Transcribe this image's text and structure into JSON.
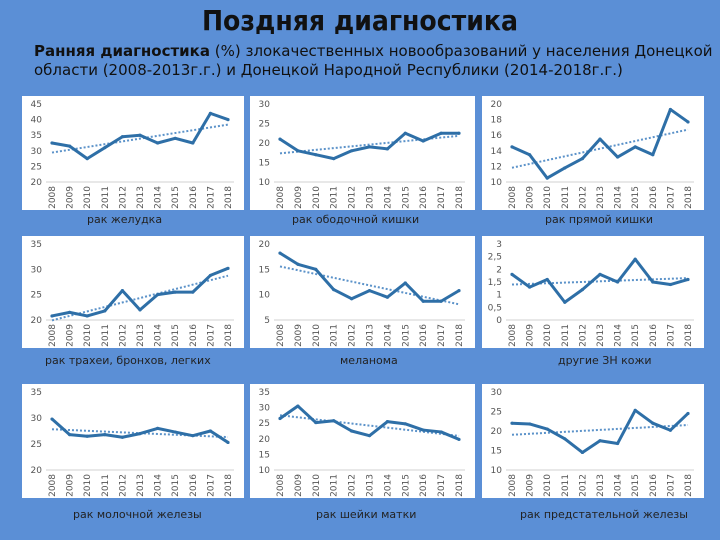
{
  "header": {
    "title": "Поздняя диагностика",
    "subtitle_bold": "Ранняя диагностика",
    "subtitle_rest": " (%) злокачественных новообразований у населения Донецкой области (2008-2013г.г.) и Донецкой Народной Республики (2014-2018г.г.)"
  },
  "colors": {
    "line": "#2e6fa7",
    "trend": "#5b92c9",
    "background": "#5b8fd6"
  },
  "chart_data": [
    {
      "type": "line",
      "title": "рак желудка",
      "x": [
        "2008",
        "2009",
        "2010",
        "2011",
        "2012",
        "2013",
        "2014",
        "2015",
        "2016",
        "2017",
        "2018"
      ],
      "values": [
        32.5,
        31.5,
        27.5,
        31,
        34.5,
        35,
        32.5,
        34,
        32.5,
        42,
        40
      ],
      "ylim": [
        20,
        45
      ],
      "yticks": [
        "20",
        "25",
        "30",
        "35",
        "40",
        "45"
      ]
    },
    {
      "type": "line",
      "title": "рак ободочной кишки",
      "x": [
        "2008",
        "2009",
        "2010",
        "2011",
        "2012",
        "2013",
        "2014",
        "2015",
        "2016",
        "2017",
        "2018"
      ],
      "values": [
        21,
        18,
        17,
        16,
        18,
        19,
        18.5,
        22.5,
        20.5,
        22.5,
        22.5
      ],
      "ylim": [
        10,
        30
      ],
      "yticks": [
        "10",
        "15",
        "20",
        "25",
        "30"
      ]
    },
    {
      "type": "line",
      "title": "рак прямой кишки",
      "x": [
        "2008",
        "2009",
        "2010",
        "2011",
        "2012",
        "2013",
        "2014",
        "2015",
        "2016",
        "2017",
        "2018"
      ],
      "values": [
        14.5,
        13.5,
        10.5,
        11.8,
        13,
        15.5,
        13.2,
        14.5,
        13.5,
        19.3,
        17.7
      ],
      "ylim": [
        10,
        20
      ],
      "yticks": [
        "10",
        "12",
        "14",
        "16",
        "18",
        "20"
      ]
    },
    {
      "type": "line",
      "title": "рак трахеи, бронхов, легких",
      "x": [
        "2008",
        "2009",
        "2010",
        "2011",
        "2012",
        "2013",
        "2014",
        "2015",
        "2016",
        "2017",
        "2018"
      ],
      "values": [
        20.8,
        21.5,
        20.8,
        21.8,
        25.8,
        22,
        25,
        25.5,
        25.5,
        28.8,
        30.2
      ],
      "ylim": [
        20,
        35
      ],
      "yticks": [
        "20",
        "25",
        "30",
        "35"
      ]
    },
    {
      "type": "line",
      "title": "меланома",
      "x": [
        "2008",
        "2009",
        "2010",
        "2011",
        "2012",
        "2013",
        "2014",
        "2015",
        "2016",
        "2017",
        "2018"
      ],
      "values": [
        18.2,
        16,
        15,
        11,
        9.2,
        10.8,
        9.5,
        12.3,
        8.7,
        8.7,
        10.8
      ],
      "ylim": [
        5,
        20
      ],
      "yticks": [
        "5",
        "10",
        "15",
        "20"
      ]
    },
    {
      "type": "line",
      "title": "другие ЗН кожи",
      "x": [
        "2008",
        "2009",
        "2010",
        "2011",
        "2012",
        "2013",
        "2014",
        "2015",
        "2016",
        "2017",
        "2018"
      ],
      "values": [
        1.8,
        1.3,
        1.6,
        0.7,
        1.2,
        1.8,
        1.5,
        2.4,
        1.5,
        1.4,
        1.6
      ],
      "ylim": [
        0,
        3
      ],
      "yticks": [
        "0",
        "0,5",
        "1",
        "1,5",
        "2",
        "2,5",
        "3"
      ]
    },
    {
      "type": "line",
      "title": "рак молочной железы",
      "x": [
        "2008",
        "2009",
        "2010",
        "2011",
        "2012",
        "2013",
        "2014",
        "2015",
        "2016",
        "2017",
        "2018"
      ],
      "values": [
        29.8,
        26.8,
        26.5,
        26.8,
        26.3,
        27,
        28,
        27.3,
        26.6,
        27.5,
        25.3
      ],
      "ylim": [
        20,
        35
      ],
      "yticks": [
        "20",
        "25",
        "30",
        "35"
      ]
    },
    {
      "type": "line",
      "title": "рак шейки матки",
      "x": [
        "2008",
        "2009",
        "2010",
        "2011",
        "2012",
        "2013",
        "2014",
        "2015",
        "2016",
        "2017",
        "2018"
      ],
      "values": [
        26.5,
        30.5,
        25.2,
        25.8,
        22.5,
        21,
        25.5,
        24.8,
        22.8,
        22.2,
        19.8
      ],
      "ylim": [
        10,
        35
      ],
      "yticks": [
        "10",
        "15",
        "20",
        "25",
        "30",
        "35"
      ]
    },
    {
      "type": "line",
      "title": "рак предстательной железы",
      "x": [
        "2008",
        "2009",
        "2010",
        "2011",
        "2012",
        "2013",
        "2014",
        "2015",
        "2016",
        "2017",
        "2018"
      ],
      "values": [
        22,
        21.8,
        20.5,
        18,
        14.5,
        17.5,
        16.8,
        25.3,
        22,
        20.2,
        24.5
      ],
      "ylim": [
        10,
        30
      ],
      "yticks": [
        "10",
        "15",
        "20",
        "25",
        "30"
      ]
    }
  ]
}
